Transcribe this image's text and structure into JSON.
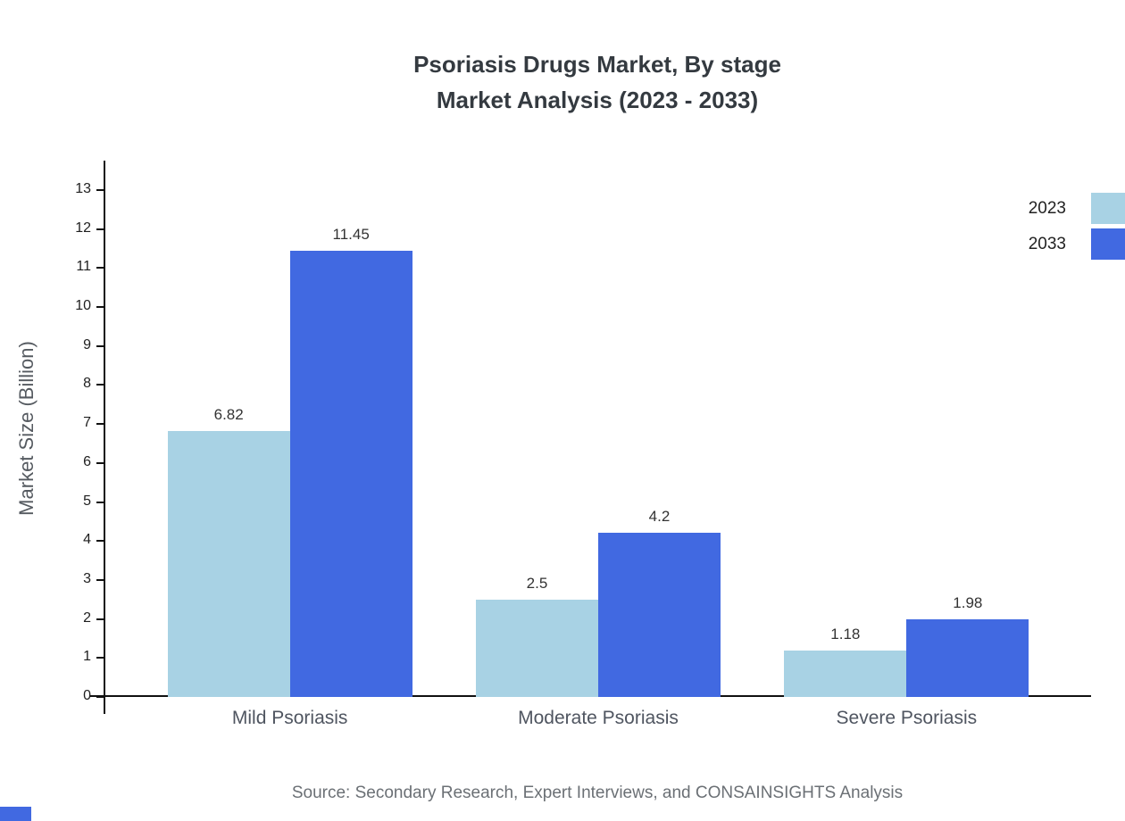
{
  "page": {
    "title_line1": "Psoriasis Drugs Market, By stage",
    "title_line2": "Market Analysis (2023 - 2033)",
    "source": "Source: Secondary Research, Expert Interviews, and CONSAINSIGHTS Analysis",
    "brand_accent_color": "#4169e1"
  },
  "chart_data": {
    "type": "bar",
    "title": "Psoriasis Drugs Market, By stage Market Analysis (2023 - 2033)",
    "categories": [
      "Mild Psoriasis",
      "Moderate Psoriasis",
      "Severe Psoriasis"
    ],
    "series": [
      {
        "name": "2023",
        "color": "#a8d2e4",
        "values": [
          6.82,
          2.5,
          1.18
        ]
      },
      {
        "name": "2033",
        "color": "#4169e1",
        "values": [
          11.45,
          4.2,
          1.98
        ]
      }
    ],
    "xlabel": "",
    "ylabel": "Market Size (Billion)",
    "ylim": [
      0,
      13
    ],
    "ytick_interval": 1,
    "grid": false,
    "legend_position": "top-right",
    "value_labels_shown": true
  }
}
